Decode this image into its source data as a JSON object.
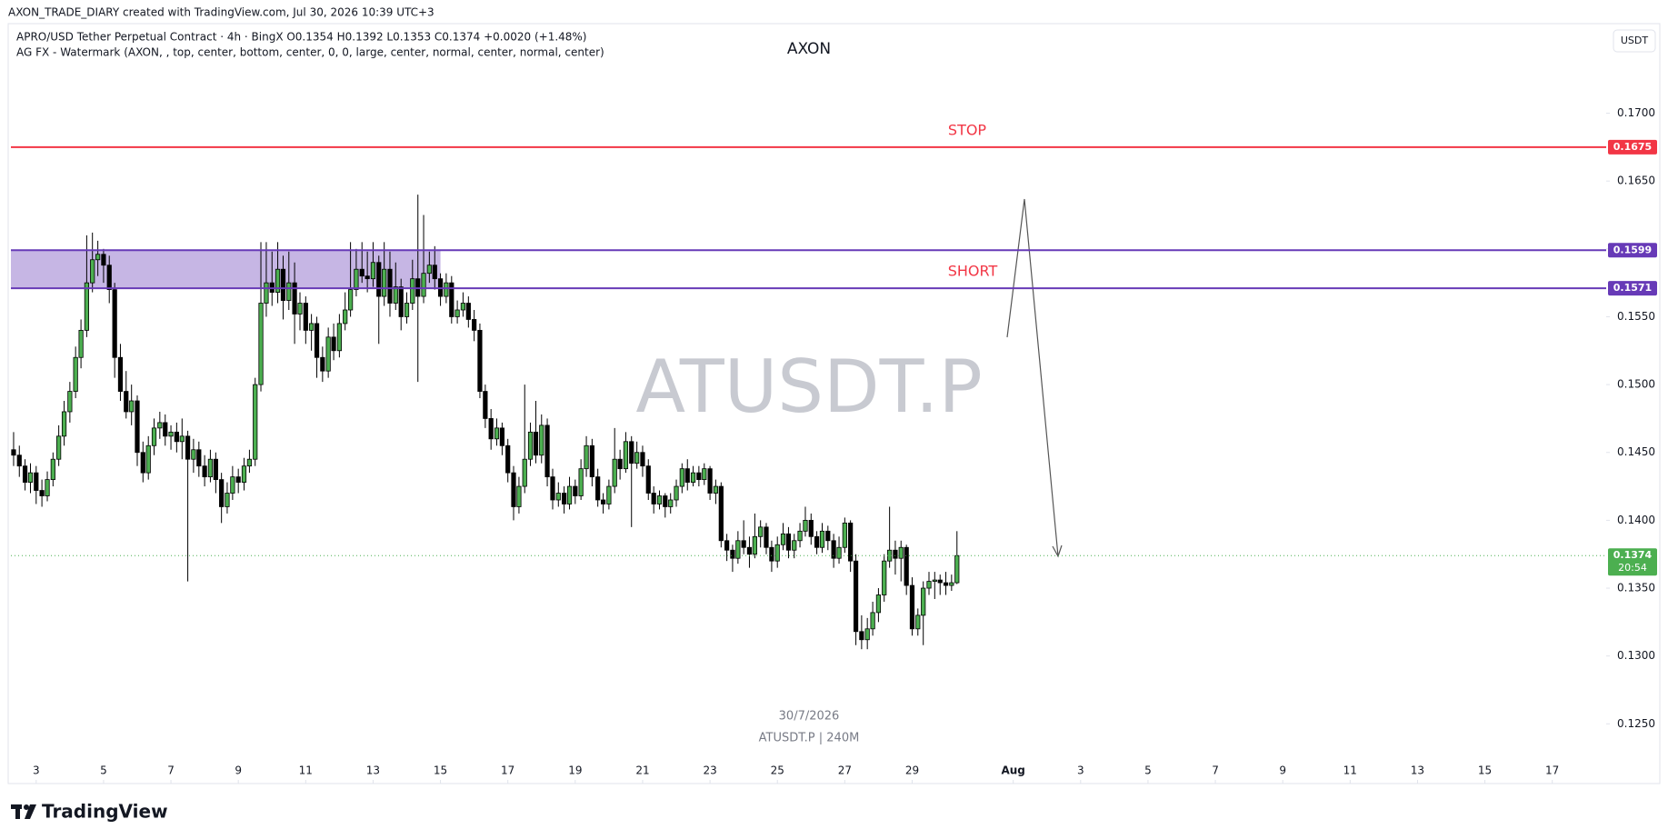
{
  "header": {
    "credit": "AXON_TRADE_DIARY created with TradingView.com, Jul 30, 2026 10:39 UTC+3",
    "legend": "APRO/USD Tether Perpetual Contract · 4h · BingX  O0.1354  H0.1392  L0.1353  C0.1374  +0.0020 (+1.48%)",
    "indicator": "AG FX - Watermark (AXON, , top, center, bottom, center, 0, 0, large, center, normal, center, normal, center)",
    "watermark_top": "AXON",
    "currency": "USDT"
  },
  "chart_data": {
    "type": "candlestick",
    "watermark": "ATUSDT.P",
    "watermark_date": "30/7/2026",
    "watermark_symbol": "ATUSDT.P | 240M",
    "up_color": "#4caf50",
    "down_color": "#000000",
    "x": [
      2.33,
      2.5,
      2.67,
      2.83,
      3,
      3.17,
      3.33,
      3.5,
      3.67,
      3.83,
      4,
      4.17,
      4.33,
      4.5,
      4.67,
      4.83,
      5,
      5.17,
      5.33,
      5.5,
      5.67,
      5.83,
      6,
      6.17,
      6.33,
      6.5,
      6.67,
      6.83,
      7,
      7.17,
      7.33,
      7.5,
      7.67,
      7.83,
      8,
      8.17,
      8.33,
      8.5,
      8.67,
      8.83,
      9,
      9.17,
      9.33,
      9.5,
      9.67,
      9.83,
      10,
      10.17,
      10.33,
      10.5,
      10.67,
      10.83,
      11,
      11.17,
      11.33,
      11.5,
      11.67,
      11.83,
      12,
      12.17,
      12.33,
      12.5,
      12.67,
      12.83,
      13,
      13.17,
      13.33,
      13.5,
      13.67,
      13.83,
      14,
      14.17,
      14.33,
      14.5,
      14.67,
      14.83,
      15,
      15.17,
      15.33,
      15.5,
      15.67,
      15.83,
      16,
      16.17,
      16.33,
      16.5,
      16.67,
      16.83,
      17,
      17.17,
      17.33,
      17.5,
      17.67,
      17.83,
      18,
      18.17,
      18.33,
      18.5,
      18.67,
      18.83,
      19,
      19.17,
      19.33,
      19.5,
      19.67,
      19.83,
      20,
      20.17,
      20.33,
      20.5,
      20.67,
      20.83,
      21,
      21.17,
      21.33,
      21.5,
      21.67,
      21.83,
      22,
      22.17,
      22.33,
      22.5,
      22.67,
      22.83,
      23,
      23.17,
      23.33,
      23.5,
      23.67,
      23.83,
      24,
      24.17,
      24.33,
      24.5,
      24.67,
      24.83,
      25,
      25.17,
      25.33,
      25.5,
      25.67,
      25.83,
      26,
      26.17,
      26.33,
      26.5,
      26.67,
      26.83,
      27,
      27.17,
      27.33,
      27.5,
      27.67,
      27.83,
      28,
      28.17,
      28.33,
      28.5,
      28.67,
      28.83,
      29,
      29.17,
      29.33,
      29.5,
      29.67,
      29.83,
      30,
      30.17,
      30.33
    ],
    "candles": [
      [
        0.1452,
        0.1465,
        0.144,
        0.1448
      ],
      [
        0.1448,
        0.1455,
        0.1432,
        0.144
      ],
      [
        0.144,
        0.1445,
        0.1422,
        0.1428
      ],
      [
        0.1428,
        0.1442,
        0.142,
        0.1435
      ],
      [
        0.1435,
        0.144,
        0.1412,
        0.1422
      ],
      [
        0.1422,
        0.143,
        0.141,
        0.1418
      ],
      [
        0.1418,
        0.1436,
        0.1414,
        0.143
      ],
      [
        0.143,
        0.145,
        0.1425,
        0.1445
      ],
      [
        0.1445,
        0.147,
        0.144,
        0.1462
      ],
      [
        0.1462,
        0.1488,
        0.1455,
        0.148
      ],
      [
        0.148,
        0.1502,
        0.1472,
        0.1495
      ],
      [
        0.1495,
        0.1528,
        0.149,
        0.152
      ],
      [
        0.152,
        0.1548,
        0.1512,
        0.154
      ],
      [
        0.154,
        0.161,
        0.1535,
        0.1575
      ],
      [
        0.1575,
        0.1612,
        0.1568,
        0.1592
      ],
      [
        0.1592,
        0.1606,
        0.158,
        0.1596
      ],
      [
        0.1596,
        0.16,
        0.1575,
        0.1588
      ],
      [
        0.1588,
        0.1595,
        0.156,
        0.157
      ],
      [
        0.157,
        0.1575,
        0.1505,
        0.152
      ],
      [
        0.152,
        0.153,
        0.1488,
        0.1495
      ],
      [
        0.1495,
        0.151,
        0.1475,
        0.148
      ],
      [
        0.148,
        0.15,
        0.147,
        0.1488
      ],
      [
        0.1488,
        0.1492,
        0.144,
        0.145
      ],
      [
        0.145,
        0.1458,
        0.1428,
        0.1435
      ],
      [
        0.1435,
        0.1462,
        0.143,
        0.1455
      ],
      [
        0.1455,
        0.1475,
        0.1448,
        0.1468
      ],
      [
        0.1468,
        0.148,
        0.146,
        0.1472
      ],
      [
        0.1472,
        0.1478,
        0.1455,
        0.1462
      ],
      [
        0.1462,
        0.147,
        0.1452,
        0.1465
      ],
      [
        0.1465,
        0.1472,
        0.145,
        0.1458
      ],
      [
        0.1458,
        0.1475,
        0.1445,
        0.1462
      ],
      [
        0.1462,
        0.1466,
        0.1355,
        0.1445
      ],
      [
        0.1445,
        0.146,
        0.1435,
        0.1452
      ],
      [
        0.1452,
        0.1458,
        0.1432,
        0.144
      ],
      [
        0.144,
        0.1448,
        0.1425,
        0.1432
      ],
      [
        0.1432,
        0.1452,
        0.1428,
        0.1445
      ],
      [
        0.1445,
        0.145,
        0.142,
        0.143
      ],
      [
        0.143,
        0.1435,
        0.1398,
        0.141
      ],
      [
        0.141,
        0.1428,
        0.1405,
        0.142
      ],
      [
        0.142,
        0.144,
        0.1415,
        0.1432
      ],
      [
        0.1432,
        0.1438,
        0.142,
        0.1428
      ],
      [
        0.1428,
        0.1446,
        0.1422,
        0.144
      ],
      [
        0.144,
        0.1452,
        0.1435,
        0.1445
      ],
      [
        0.1445,
        0.1505,
        0.144,
        0.15
      ],
      [
        0.15,
        0.1605,
        0.1495,
        0.156
      ],
      [
        0.156,
        0.1605,
        0.155,
        0.1575
      ],
      [
        0.1575,
        0.1598,
        0.1558,
        0.1568
      ],
      [
        0.1568,
        0.1605,
        0.156,
        0.1585
      ],
      [
        0.1585,
        0.1595,
        0.1548,
        0.1562
      ],
      [
        0.1562,
        0.1598,
        0.1555,
        0.1575
      ],
      [
        0.1575,
        0.159,
        0.153,
        0.1552
      ],
      [
        0.1552,
        0.1568,
        0.154,
        0.156
      ],
      [
        0.156,
        0.1565,
        0.153,
        0.154
      ],
      [
        0.154,
        0.1552,
        0.1525,
        0.1545
      ],
      [
        0.1545,
        0.155,
        0.1505,
        0.152
      ],
      [
        0.152,
        0.1528,
        0.1502,
        0.151
      ],
      [
        0.151,
        0.1542,
        0.1505,
        0.1535
      ],
      [
        0.1535,
        0.1545,
        0.1518,
        0.1525
      ],
      [
        0.1525,
        0.1552,
        0.152,
        0.1545
      ],
      [
        0.1545,
        0.1568,
        0.154,
        0.1555
      ],
      [
        0.1555,
        0.1605,
        0.155,
        0.157
      ],
      [
        0.157,
        0.16,
        0.1565,
        0.1585
      ],
      [
        0.1585,
        0.1605,
        0.1575,
        0.158
      ],
      [
        0.158,
        0.1598,
        0.1568,
        0.1578
      ],
      [
        0.1578,
        0.1605,
        0.1572,
        0.159
      ],
      [
        0.159,
        0.1595,
        0.153,
        0.1565
      ],
      [
        0.1565,
        0.1605,
        0.1558,
        0.1585
      ],
      [
        0.1585,
        0.1598,
        0.155,
        0.156
      ],
      [
        0.156,
        0.159,
        0.1555,
        0.1572
      ],
      [
        0.1572,
        0.1578,
        0.154,
        0.155
      ],
      [
        0.155,
        0.1568,
        0.1545,
        0.156
      ],
      [
        0.156,
        0.1592,
        0.1555,
        0.1578
      ],
      [
        0.1578,
        0.164,
        0.1502,
        0.1565
      ],
      [
        0.1565,
        0.1625,
        0.156,
        0.1582
      ],
      [
        0.1582,
        0.1598,
        0.1575,
        0.1588
      ],
      [
        0.1588,
        0.1602,
        0.157,
        0.1578
      ],
      [
        0.1578,
        0.1582,
        0.1558,
        0.1565
      ],
      [
        0.1565,
        0.1582,
        0.156,
        0.1575
      ],
      [
        0.1575,
        0.158,
        0.1545,
        0.155
      ],
      [
        0.155,
        0.1562,
        0.1545,
        0.1555
      ],
      [
        0.1555,
        0.1568,
        0.155,
        0.156
      ],
      [
        0.156,
        0.1565,
        0.1542,
        0.1548
      ],
      [
        0.1548,
        0.1555,
        0.1532,
        0.154
      ],
      [
        0.154,
        0.1545,
        0.149,
        0.1495
      ],
      [
        0.1495,
        0.15,
        0.1468,
        0.1475
      ],
      [
        0.1475,
        0.1482,
        0.1452,
        0.146
      ],
      [
        0.146,
        0.1475,
        0.1455,
        0.1468
      ],
      [
        0.1468,
        0.1472,
        0.1448,
        0.1455
      ],
      [
        0.1455,
        0.146,
        0.1428,
        0.1435
      ],
      [
        0.1435,
        0.144,
        0.14,
        0.141
      ],
      [
        0.141,
        0.1432,
        0.1405,
        0.1425
      ],
      [
        0.1425,
        0.15,
        0.142,
        0.1445
      ],
      [
        0.1445,
        0.1472,
        0.144,
        0.1465
      ],
      [
        0.1465,
        0.1488,
        0.1442,
        0.1448
      ],
      [
        0.1448,
        0.1478,
        0.1442,
        0.147
      ],
      [
        0.147,
        0.1475,
        0.1425,
        0.1432
      ],
      [
        0.1432,
        0.1438,
        0.1408,
        0.1415
      ],
      [
        0.1415,
        0.1428,
        0.141,
        0.142
      ],
      [
        0.142,
        0.1425,
        0.1405,
        0.1412
      ],
      [
        0.1412,
        0.1432,
        0.1408,
        0.1425
      ],
      [
        0.1425,
        0.143,
        0.1412,
        0.1418
      ],
      [
        0.1418,
        0.1445,
        0.1415,
        0.1438
      ],
      [
        0.1438,
        0.1462,
        0.1432,
        0.1455
      ],
      [
        0.1455,
        0.146,
        0.1425,
        0.1432
      ],
      [
        0.1432,
        0.1438,
        0.141,
        0.1415
      ],
      [
        0.1415,
        0.142,
        0.1405,
        0.1412
      ],
      [
        0.1412,
        0.143,
        0.1408,
        0.1425
      ],
      [
        0.1425,
        0.1468,
        0.142,
        0.1445
      ],
      [
        0.1445,
        0.1452,
        0.143,
        0.1438
      ],
      [
        0.1438,
        0.1465,
        0.1435,
        0.1458
      ],
      [
        0.1458,
        0.1462,
        0.1395,
        0.1442
      ],
      [
        0.1442,
        0.1458,
        0.1438,
        0.145
      ],
      [
        0.145,
        0.1455,
        0.1432,
        0.144
      ],
      [
        0.144,
        0.1445,
        0.1415,
        0.142
      ],
      [
        0.142,
        0.1425,
        0.1405,
        0.1412
      ],
      [
        0.1412,
        0.1422,
        0.1408,
        0.1418
      ],
      [
        0.1418,
        0.142,
        0.1402,
        0.141
      ],
      [
        0.141,
        0.142,
        0.1405,
        0.1415
      ],
      [
        0.1415,
        0.143,
        0.141,
        0.1425
      ],
      [
        0.1425,
        0.1442,
        0.142,
        0.1438
      ],
      [
        0.1438,
        0.1445,
        0.1422,
        0.1428
      ],
      [
        0.1428,
        0.144,
        0.1425,
        0.1435
      ],
      [
        0.1435,
        0.144,
        0.1425,
        0.143
      ],
      [
        0.143,
        0.1442,
        0.1426,
        0.1438
      ],
      [
        0.1438,
        0.144,
        0.1415,
        0.142
      ],
      [
        0.142,
        0.143,
        0.1412,
        0.1425
      ],
      [
        0.1425,
        0.1428,
        0.138,
        0.1385
      ],
      [
        0.1385,
        0.139,
        0.137,
        0.1378
      ],
      [
        0.1378,
        0.1382,
        0.1362,
        0.1372
      ],
      [
        0.1372,
        0.1392,
        0.1368,
        0.1385
      ],
      [
        0.1385,
        0.14,
        0.1375,
        0.138
      ],
      [
        0.138,
        0.1388,
        0.1365,
        0.1375
      ],
      [
        0.1375,
        0.1405,
        0.1372,
        0.1388
      ],
      [
        0.1388,
        0.14,
        0.138,
        0.1395
      ],
      [
        0.1395,
        0.1398,
        0.1375,
        0.138
      ],
      [
        0.138,
        0.1385,
        0.1362,
        0.137
      ],
      [
        0.137,
        0.1388,
        0.1365,
        0.1382
      ],
      [
        0.1382,
        0.1398,
        0.1378,
        0.139
      ],
      [
        0.139,
        0.1395,
        0.1372,
        0.1378
      ],
      [
        0.1378,
        0.139,
        0.1372,
        0.1385
      ],
      [
        0.1385,
        0.1398,
        0.138,
        0.1392
      ],
      [
        0.1392,
        0.141,
        0.1388,
        0.14
      ],
      [
        0.14,
        0.1405,
        0.1382,
        0.1388
      ],
      [
        0.1388,
        0.1392,
        0.1375,
        0.138
      ],
      [
        0.138,
        0.1398,
        0.1376,
        0.1392
      ],
      [
        0.1392,
        0.1396,
        0.1378,
        0.1385
      ],
      [
        0.1385,
        0.139,
        0.1365,
        0.1372
      ],
      [
        0.1372,
        0.1388,
        0.1368,
        0.138
      ],
      [
        0.138,
        0.1402,
        0.1376,
        0.1398
      ],
      [
        0.1398,
        0.14,
        0.1362,
        0.137
      ],
      [
        0.137,
        0.1375,
        0.1308,
        0.1318
      ],
      [
        0.1318,
        0.133,
        0.1305,
        0.1312
      ],
      [
        0.1312,
        0.1328,
        0.1305,
        0.132
      ],
      [
        0.132,
        0.134,
        0.1315,
        0.1332
      ],
      [
        0.1332,
        0.135,
        0.1325,
        0.1345
      ],
      [
        0.1345,
        0.1375,
        0.134,
        0.137
      ],
      [
        0.137,
        0.141,
        0.1365,
        0.1378
      ],
      [
        0.1378,
        0.1385,
        0.136,
        0.1372
      ],
      [
        0.1372,
        0.1385,
        0.1355,
        0.138
      ],
      [
        0.138,
        0.1382,
        0.1345,
        0.1352
      ],
      [
        0.1352,
        0.1358,
        0.1315,
        0.132
      ],
      [
        0.132,
        0.1335,
        0.1315,
        0.133
      ],
      [
        0.133,
        0.1355,
        0.1308,
        0.135
      ],
      [
        0.135,
        0.1362,
        0.1345,
        0.1355
      ],
      [
        0.1355,
        0.1362,
        0.1342,
        0.1356
      ],
      [
        0.1356,
        0.136,
        0.1345,
        0.1354
      ],
      [
        0.1354,
        0.1362,
        0.1345,
        0.1352
      ],
      [
        0.1352,
        0.136,
        0.1348,
        0.1354
      ],
      [
        0.1354,
        0.1392,
        0.1353,
        0.1374
      ]
    ],
    "xlim": [
      2.25,
      49.6
    ],
    "xticks": [
      3,
      5,
      7,
      9,
      11,
      13,
      15,
      17,
      19,
      21,
      23,
      25,
      27,
      29,
      {
        "value": 32,
        "label": "Aug"
      },
      {
        "value": 34,
        "label": "3"
      },
      {
        "value": 36,
        "label": "5"
      },
      {
        "value": 38,
        "label": "7"
      },
      {
        "value": 40,
        "label": "9"
      },
      {
        "value": 42,
        "label": "11"
      },
      {
        "value": 44,
        "label": "13"
      },
      {
        "value": 46,
        "label": "15"
      },
      {
        "value": 48,
        "label": "17"
      }
    ],
    "ylim": [
      0.1206,
      0.1766
    ],
    "yticks": [
      {
        "value": 0.125,
        "label": "0.1250"
      },
      {
        "value": 0.13,
        "label": "0.1300"
      },
      {
        "value": 0.135,
        "label": "0.1350"
      },
      {
        "value": 0.14,
        "label": "0.1400"
      },
      {
        "value": 0.145,
        "label": "0.1450"
      },
      {
        "value": 0.15,
        "label": "0.1500"
      },
      {
        "value": 0.155,
        "label": "0.1550"
      },
      {
        "value": 0.16,
        "label": "0.1600"
      },
      {
        "value": 0.165,
        "label": "0.1650"
      },
      {
        "value": 0.17,
        "label": "0.1700"
      }
    ],
    "levels": [
      {
        "value": 0.1675,
        "color": "#f23645",
        "label": "STOP"
      },
      {
        "value": 0.1599,
        "color": "#673ab7"
      },
      {
        "value": 0.1571,
        "color": "#673ab7",
        "label": "SHORT"
      }
    ],
    "zone": {
      "low": 0.1571,
      "high": 0.1599,
      "x": [
        2.25,
        15
      ],
      "color": "#b39ddb"
    },
    "last_price": {
      "value": 0.1374,
      "countdown": "20:54",
      "color": "#4caf50"
    }
  },
  "footer": {
    "brand": "TradingView"
  }
}
